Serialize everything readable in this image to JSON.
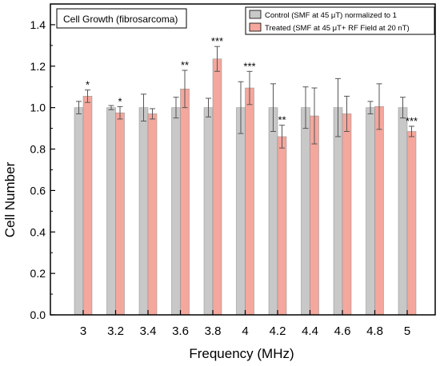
{
  "chart_data": {
    "type": "bar",
    "title": "Cell Growth (fibrosarcoma)",
    "xlabel": "Frequency (MHz)",
    "ylabel": "Cell Number",
    "ylim": [
      0,
      1.5
    ],
    "yticks": [
      "0.0",
      "0.2",
      "0.4",
      "0.6",
      "0.8",
      "1.0",
      "1.2",
      "1.4"
    ],
    "categories": [
      "3",
      "3.2",
      "3.4",
      "3.6",
      "3.8",
      "4",
      "4.2",
      "4.4",
      "4.6",
      "4.8",
      "5"
    ],
    "grid": false,
    "legend_position": "top-right",
    "series": [
      {
        "name": "Control  (SMF at 45 μT) normalized to 1",
        "color": "#c8c8c8",
        "values": [
          1.0,
          1.0,
          1.0,
          1.0,
          1.0,
          1.0,
          1.0,
          1.0,
          1.0,
          1.0,
          1.0
        ],
        "errors": [
          0.03,
          0.01,
          0.065,
          0.05,
          0.045,
          0.125,
          0.115,
          0.1,
          0.14,
          0.03,
          0.05
        ]
      },
      {
        "name": "Treated (SMF at 45 μT+ RF Field at 20 nT)",
        "color": "#f4a79d",
        "values": [
          1.055,
          0.975,
          0.97,
          1.09,
          1.235,
          1.095,
          0.86,
          0.96,
          0.97,
          1.005,
          0.885
        ],
        "errors": [
          0.03,
          0.03,
          0.025,
          0.09,
          0.06,
          0.08,
          0.055,
          0.135,
          0.085,
          0.11,
          0.025
        ]
      }
    ],
    "significance": [
      "*",
      "*",
      "",
      "**",
      "***",
      "***",
      "**",
      "",
      "",
      "",
      "***"
    ]
  }
}
